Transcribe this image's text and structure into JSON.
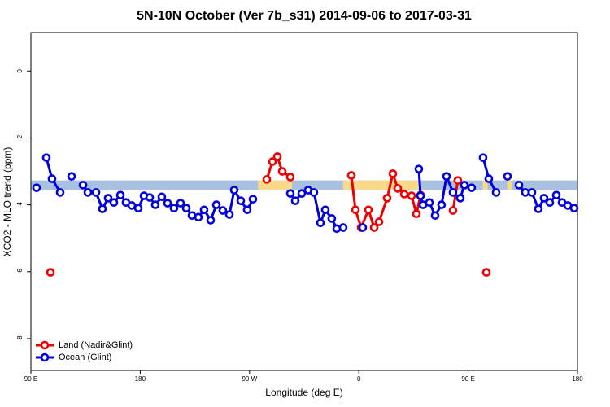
{
  "chart_data": {
    "type": "line",
    "title": "5N-10N October (Ver 7b_s31)   2014-09-06 to 2017-03-31",
    "x_label": "Longitude (deg E)",
    "y_label": "XCO2 - MLO trend (ppm)",
    "xlim": [
      90,
      540
    ],
    "xticks": [
      {
        "value": 90,
        "label": "90 E"
      },
      {
        "value": 180,
        "label": "180"
      },
      {
        "value": 270,
        "label": "90 W"
      },
      {
        "value": 360,
        "label": "0"
      },
      {
        "value": 450,
        "label": "90 E"
      },
      {
        "value": 540,
        "label": "180"
      }
    ],
    "ylim": [
      -8.95,
      1.15
    ],
    "yticks": [
      0,
      -2,
      -4,
      -6,
      -8
    ],
    "reference_band": {
      "ylim": [
        -3.55,
        -3.27
      ],
      "color": "#a9c1e0"
    },
    "land_bands": {
      "color": "#f9d98a",
      "x": [
        [
          277,
          305
        ],
        [
          347,
          410
        ],
        [
          462,
          466
        ],
        [
          482,
          486
        ]
      ]
    },
    "legend": "bottom-left",
    "series": [
      {
        "name": "Land (Nadir&Glint)",
        "color": "#ee0000",
        "x": [
          106.1,
          null,
          284.2,
          288.9,
          292.9,
          296.9,
          303.6,
          null,
          353.8,
          357.2,
          361.9,
          367.9,
          372.6,
          376.6,
          383.3,
          388.0,
          392.0,
          397.4,
          403.4,
          407.4,
          410.8,
          null,
          437.5,
          441.5,
          null,
          465.0
        ],
        "values": [
          -6.02,
          null,
          -3.24,
          -2.71,
          -2.56,
          -3.0,
          -3.17,
          null,
          -3.12,
          -4.15,
          -4.68,
          -4.15,
          -4.68,
          -4.51,
          -3.8,
          -3.07,
          -3.51,
          -3.68,
          -3.73,
          -4.27,
          -3.71,
          null,
          -4.17,
          -3.27,
          null,
          -6.02
        ]
      },
      {
        "name": "Ocean (Glint)",
        "color": "#0000dd",
        "x": [
          94.7,
          null,
          102.7,
          107.4,
          114.1,
          null,
          123.5,
          null,
          132.9,
          136.9,
          143.6,
          148.9,
          153.6,
          158.3,
          163.7,
          168.3,
          173.0,
          178.4,
          183.1,
          187.8,
          192.4,
          197.8,
          202.5,
          207.8,
          213.2,
          217.9,
          222.6,
          227.9,
          232.6,
          238.0,
          242.7,
          248.0,
          253.4,
          257.4,
          262.8,
          268.1,
          272.8,
          null,
          303.6,
          307.6,
          313.0,
          318.3,
          323.0,
          328.4,
          332.4,
          337.7,
          341.8,
          347.1,
          null,
          363.2,
          null,
          409.4,
          410.8,
          412.8,
          418.1,
          422.8,
          428.1,
          432.2,
          437.5,
          443.5,
          446.9,
          452.9,
          null,
          462.3,
          467.0,
          473.0,
          null,
          482.4,
          null,
          491.8,
          497.1,
          502.5,
          507.8,
          512.5,
          517.2,
          522.6,
          527.3,
          532.0,
          537.3
        ],
        "values": [
          -3.49,
          null,
          -2.59,
          -3.22,
          -3.63,
          null,
          -3.15,
          null,
          -3.41,
          -3.63,
          -3.63,
          -4.12,
          -3.8,
          -3.93,
          -3.71,
          -3.93,
          -4.02,
          -4.1,
          -3.73,
          -3.78,
          -4.0,
          -3.76,
          -3.95,
          -4.1,
          -3.95,
          -4.1,
          -4.32,
          -4.37,
          -4.15,
          -4.46,
          -4.0,
          -4.17,
          -4.29,
          -3.56,
          -3.88,
          -4.15,
          -3.83,
          null,
          -3.66,
          -3.88,
          -3.66,
          -3.56,
          -3.63,
          -4.54,
          -4.15,
          -4.41,
          -4.71,
          -4.68,
          null,
          -4.68,
          null,
          -2.93,
          -3.73,
          -4.0,
          -3.93,
          -4.32,
          -4.0,
          -3.15,
          -3.63,
          -3.8,
          -3.41,
          -3.49,
          null,
          -2.59,
          -3.22,
          -3.63,
          null,
          -3.15,
          null,
          -3.41,
          -3.63,
          -3.63,
          -4.12,
          -3.8,
          -3.93,
          -3.71,
          -3.93,
          -4.02,
          -4.1
        ]
      }
    ]
  }
}
